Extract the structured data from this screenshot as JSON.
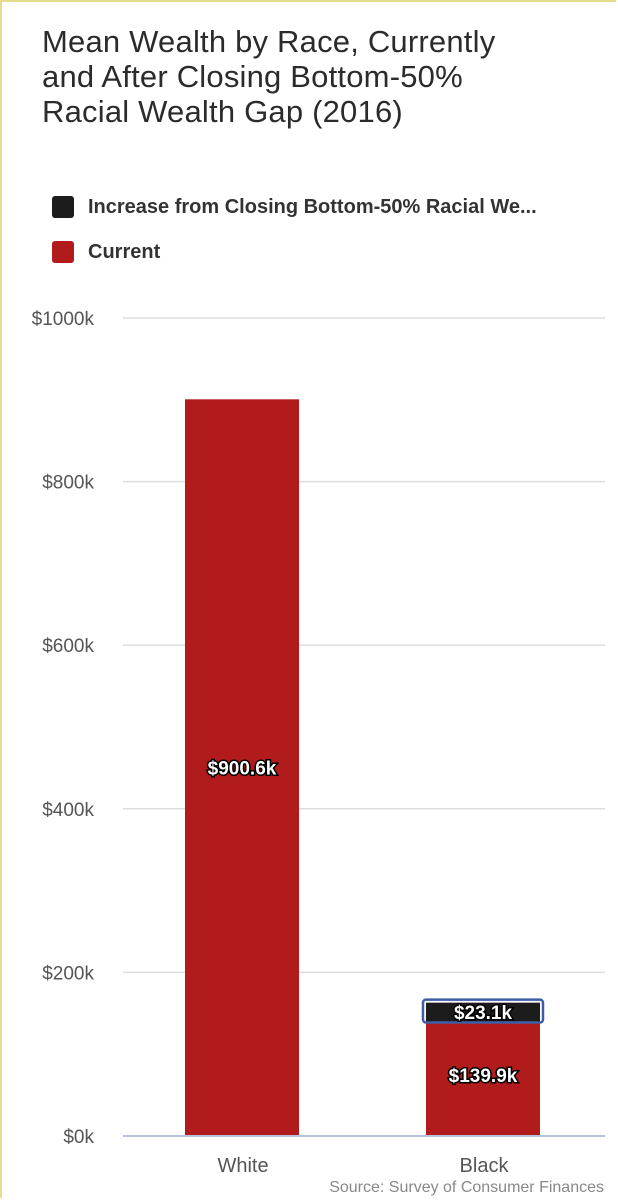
{
  "title": "Mean Wealth by Race, Currently\nand After Closing Bottom-50%\nRacial Wealth Gap (2016)",
  "source": "Source: Survey of Consumer Finances",
  "colors": {
    "increase": "#1c1c1c",
    "current": "#b21b1b",
    "grid": "#dddddd",
    "axis": "#b9c2dc",
    "selection": "#3f5fa5"
  },
  "legend": [
    {
      "label": "Increase from Closing Bottom-50% Racial We...",
      "color": "#1c1c1c"
    },
    {
      "label": "Current",
      "color": "#b21b1b"
    }
  ],
  "chart_data": {
    "type": "bar",
    "stacked": true,
    "categories": [
      "White",
      "Black"
    ],
    "series": [
      {
        "name": "Current",
        "values": [
          900.6,
          139.9
        ],
        "labels": [
          "$900.6k",
          "$139.9k"
        ]
      },
      {
        "name": "Increase from Closing Bottom-50% Racial We...",
        "values": [
          0,
          23.1
        ],
        "labels": [
          "",
          "$23.1k"
        ]
      }
    ],
    "ylim": [
      0,
      1000
    ],
    "yticks": [
      0,
      200,
      400,
      600,
      800,
      1000
    ],
    "ytick_labels": [
      "$0k",
      "$200k",
      "$400k",
      "$600k",
      "$800k",
      "$1000k"
    ],
    "legend_position": "top",
    "grid": true
  }
}
